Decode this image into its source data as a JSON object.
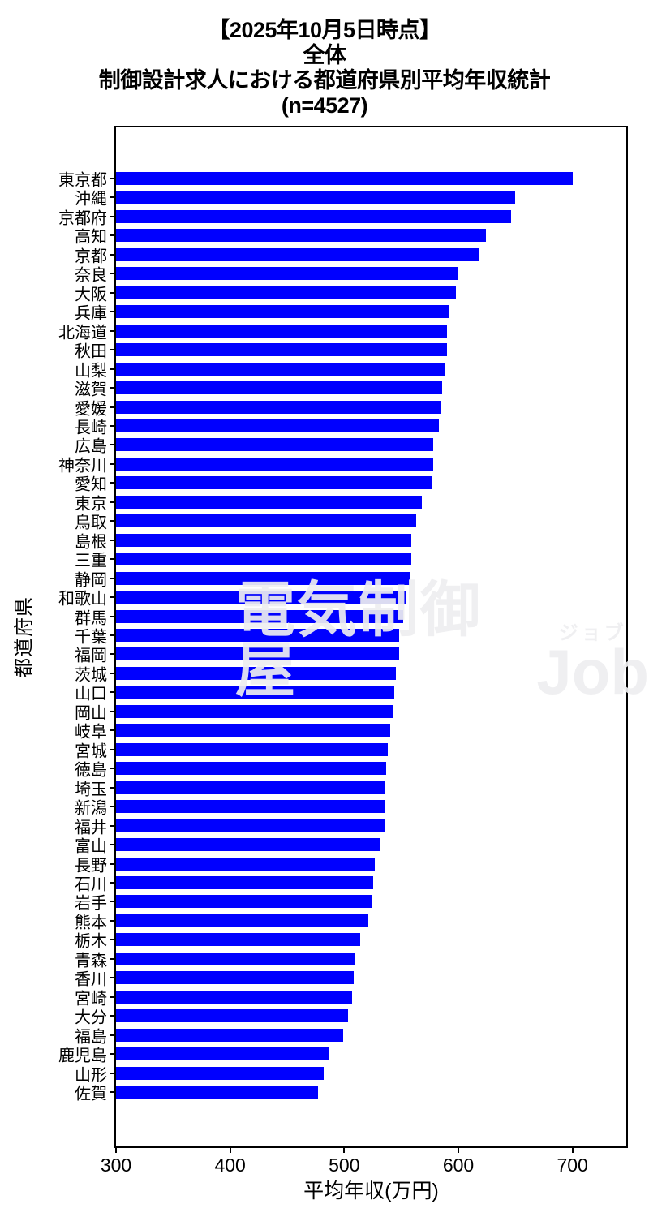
{
  "title": {
    "line1": "【2025年10月5日時点】",
    "line2": "全体",
    "line3": "制御設計求人における都道府県別平均年収統計",
    "line4": "(n=4527)"
  },
  "watermark": {
    "main": "電気制御屋",
    "furigana": "ジョブ",
    "suffix": "Job"
  },
  "chart_data": {
    "type": "bar",
    "orientation": "horizontal",
    "title": "【2025年10月5日時点】 全体 制御設計求人における都道府県別平均年収統計 (n=4527)",
    "xlabel": "平均年収(万円)",
    "ylabel": "都道府県",
    "xlim": [
      300,
      750
    ],
    "xticks": [
      300,
      400,
      500,
      600,
      700
    ],
    "grid": false,
    "legend": false,
    "bar_color": "#0000ff",
    "categories": [
      "東京都",
      "沖縄",
      "京都府",
      "高知",
      "京都",
      "奈良",
      "大阪",
      "兵庫",
      "北海道",
      "秋田",
      "山梨",
      "滋賀",
      "愛媛",
      "長崎",
      "広島",
      "神奈川",
      "愛知",
      "東京",
      "鳥取",
      "島根",
      "三重",
      "静岡",
      "和歌山",
      "群馬",
      "千葉",
      "福岡",
      "茨城",
      "山口",
      "岡山",
      "岐阜",
      "宮城",
      "徳島",
      "埼玉",
      "新潟",
      "福井",
      "富山",
      "長野",
      "石川",
      "岩手",
      "熊本",
      "栃木",
      "青森",
      "香川",
      "宮崎",
      "大分",
      "福島",
      "鹿児島",
      "山形",
      "佐賀"
    ],
    "values": [
      700,
      650,
      646,
      624,
      618,
      600,
      598,
      592,
      590,
      590,
      588,
      586,
      585,
      583,
      578,
      578,
      577,
      568,
      563,
      559,
      559,
      558,
      554,
      552,
      548,
      548,
      545,
      544,
      543,
      540,
      538,
      537,
      536,
      535,
      535,
      532,
      527,
      525,
      524,
      521,
      514,
      510,
      508,
      507,
      503,
      499,
      486,
      482,
      477
    ]
  }
}
